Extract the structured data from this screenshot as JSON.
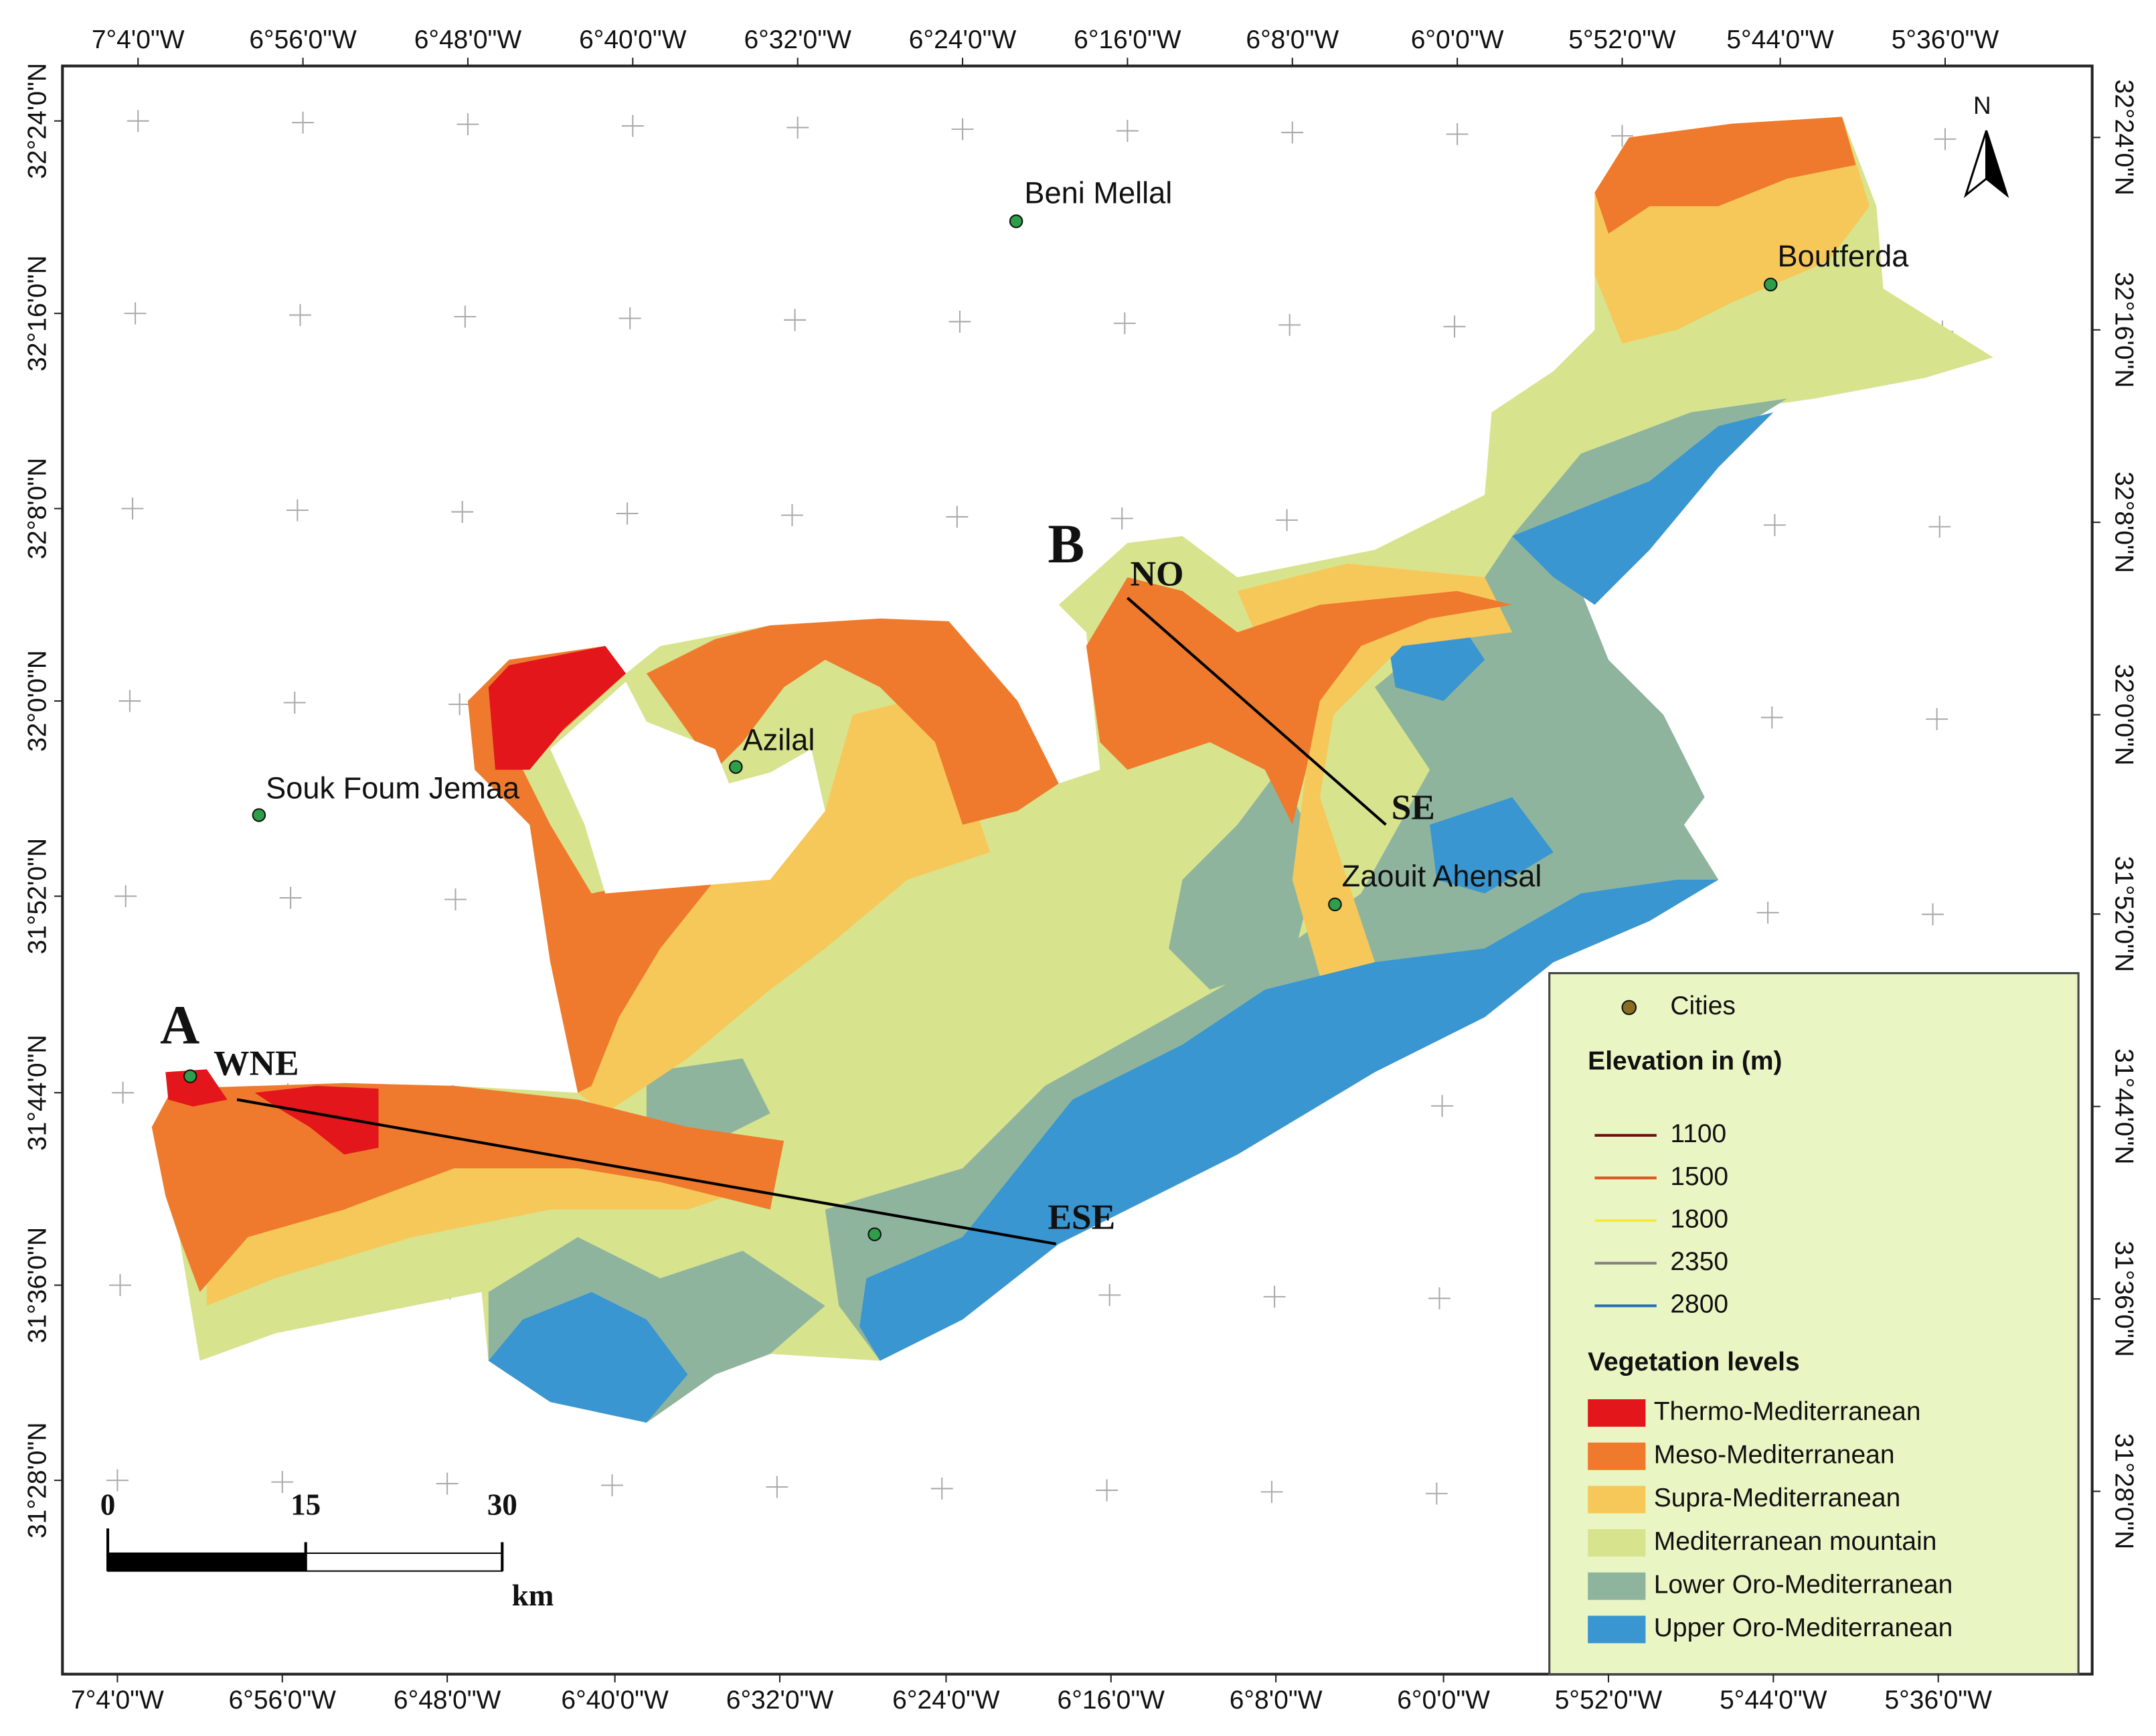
{
  "map": {
    "north": "N"
  },
  "longitude_labels": [
    "7°4'0\"W",
    "6°56'0\"W",
    "6°48'0\"W",
    "6°40'0\"W",
    "6°32'0\"W",
    "6°24'0\"W",
    "6°16'0\"W",
    "6°8'0\"W",
    "6°0'0\"W",
    "5°52'0\"W",
    "5°44'0\"W",
    "5°36'0\"W"
  ],
  "latitude_labels": [
    "32°24'0\"N",
    "32°16'0\"N",
    "32°8'0\"N",
    "32°0'0\"N",
    "31°52'0\"N",
    "31°44'0\"N",
    "31°36'0\"N",
    "31°28'0\"N"
  ],
  "cities": [
    {
      "name": "Beni Mellal"
    },
    {
      "name": "Boutferda"
    },
    {
      "name": "Azilal"
    },
    {
      "name": "Souk Foum Jemaa"
    },
    {
      "name": "Zaouit Ahensal"
    }
  ],
  "profiles": [
    {
      "label": "A",
      "start": "WNE",
      "end": "ESE"
    },
    {
      "label": "B",
      "start": "NO",
      "end": "SE"
    }
  ],
  "legend": {
    "cities": "Cities",
    "elevation_title": "Elevation in (m)",
    "contours": [
      {
        "label": 1100,
        "color": "#6b0f0f"
      },
      {
        "label": 1500,
        "color": "#d9541e"
      },
      {
        "label": 1800,
        "color": "#f2ee3a"
      },
      {
        "label": 2350,
        "color": "#808080"
      },
      {
        "label": 2800,
        "color": "#2a6fb0"
      }
    ],
    "vegetation_title": "Vegetation levels",
    "vegetation": [
      {
        "label": "Thermo-Mediterranean",
        "color": "#e3161b"
      },
      {
        "label": "Meso-Mediterranean",
        "color": "#ef7a2d"
      },
      {
        "label": "Supra-Mediterranean",
        "color": "#f6c85a"
      },
      {
        "label": "Mediterranean mountain",
        "color": "#d8e38e"
      },
      {
        "label": "Lower Oro-Mediterranean",
        "color": "#8fb49e"
      },
      {
        "label": "Upper Oro-Mediterranean",
        "color": "#3996d0"
      }
    ]
  },
  "scale_bar": {
    "ticks": [
      0,
      15,
      30
    ],
    "unit": "km"
  }
}
